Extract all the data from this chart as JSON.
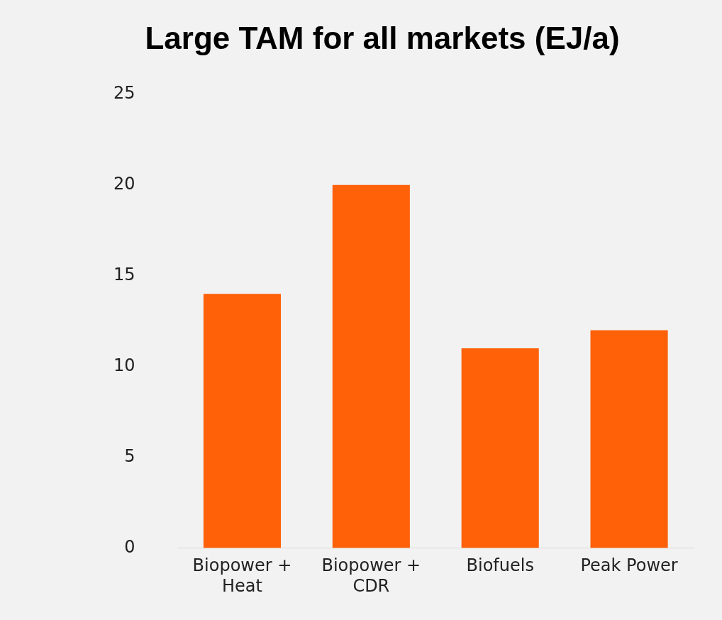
{
  "chart_data": {
    "type": "bar",
    "title": "Large TAM for all markets (EJ/a)",
    "categories": [
      "Biopower + Heat",
      "Biopower + CDR",
      "Biofuels",
      "Peak Power"
    ],
    "values": [
      14,
      20,
      11,
      12
    ],
    "color": "#ff6109",
    "ylim": [
      0,
      25
    ],
    "yticks": [
      0,
      5,
      10,
      15,
      20,
      25
    ],
    "grid": false,
    "legend": false
  }
}
